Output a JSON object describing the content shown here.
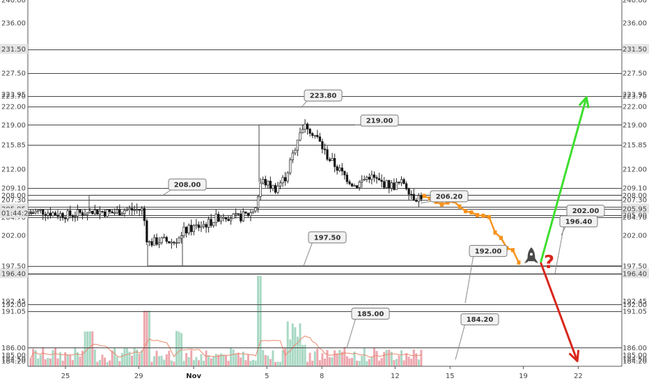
{
  "chart_data": {
    "type": "candlestick",
    "title": "",
    "y_scale": "log",
    "ylim": [
      183.5,
      240.0
    ],
    "grid": false,
    "y_ticks": [
      "240.00",
      "236.00",
      "231.50",
      "227.50",
      "223.95",
      "223.70",
      "222.00",
      "219.00",
      "215.85",
      "212.00",
      "209.10",
      "208.00",
      "207.30",
      "206.20",
      "205.95",
      "205.00",
      "204.70",
      "202.00",
      "197.50",
      "196.40",
      "192.45",
      "192.00",
      "191.05",
      "186.00",
      "185.00",
      "184.50",
      "184.20"
    ],
    "highlighted_ticks": [
      "231.50",
      "205.95",
      "196.40"
    ],
    "current_price_label": "01:44:20",
    "x_ticks": [
      "25",
      "29",
      "Nov",
      "5",
      "8",
      "12",
      "15",
      "19",
      "22"
    ],
    "levels": [
      231.5,
      227.5,
      223.7,
      222.0,
      219.0,
      215.85,
      209.1,
      208.0,
      207.3,
      206.2,
      205.95,
      205.0,
      204.7,
      197.5,
      196.4,
      192.0,
      191.05,
      186.0
    ],
    "annotations": [
      {
        "label": "223.80",
        "value": 223.8
      },
      {
        "label": "219.00",
        "value": 219.0
      },
      {
        "label": "208.00",
        "value": 208.0
      },
      {
        "label": "206.20",
        "value": 206.2
      },
      {
        "label": "202.00",
        "value": 202.0
      },
      {
        "label": "197.50",
        "value": 197.5
      },
      {
        "label": "196.40",
        "value": 196.4
      },
      {
        "label": "192.00",
        "value": 192.0
      },
      {
        "label": "185.00",
        "value": 185.0
      },
      {
        "label": "184.20",
        "value": 184.2
      }
    ],
    "forecast_path": [
      207.9,
      207.5,
      207.0,
      206.6,
      206.9,
      207.1,
      206.3,
      205.6,
      205.4,
      205.0,
      204.9,
      204.7,
      202.4,
      201.6,
      200.1,
      199.8,
      198.0
    ],
    "scenario_up": {
      "from_day": 19,
      "from_value": 198.0,
      "to_day": 21.5,
      "to_value": 223.5,
      "color": "#3dde2e"
    },
    "scenario_down": {
      "from_day": 19,
      "from_value": 198.0,
      "to_day": 21.0,
      "to_value": 184.2,
      "color": "#d9261c"
    },
    "question_mark": "?",
    "rocket_icon": "rocket-icon",
    "colors": {
      "up": "#ffffff",
      "down": "#111111",
      "wick": "#222222",
      "forecast": "#f7931e",
      "vol_up": "#a8d8c4",
      "vol_down": "#eda6ad",
      "ma": "#e8876a"
    }
  }
}
